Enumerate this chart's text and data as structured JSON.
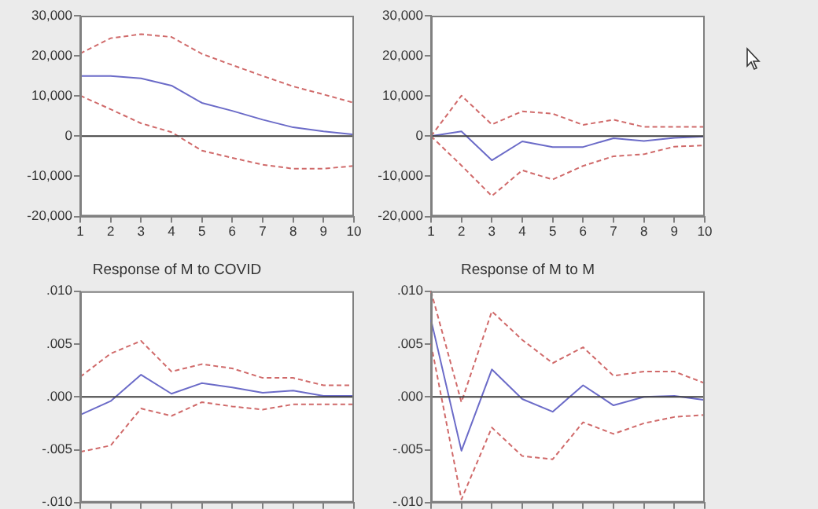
{
  "chart_data": [
    {
      "type": "line",
      "categories": [
        "1",
        "2",
        "3",
        "4",
        "5",
        "6",
        "7",
        "8",
        "9",
        "10"
      ],
      "ylim": [
        -20000,
        30000
      ],
      "yticks": [
        {
          "value": -20000,
          "label": "-20,000"
        },
        {
          "value": -10000,
          "label": "-10,000"
        },
        0,
        {
          "value": 10000,
          "label": "10,000"
        },
        {
          "value": 20000,
          "label": "20,000"
        },
        {
          "value": 30000,
          "label": "30,000"
        }
      ],
      "grid": false,
      "legend": false,
      "marker": "none",
      "ref_lines": [
        {
          "axis": "y",
          "value": 0,
          "color": "#404040"
        }
      ],
      "series": [
        {
          "color": "#d06a6a",
          "line_style": "dashed",
          "values": [
            20600,
            24400,
            25400,
            24700,
            20500,
            17700,
            15000,
            12400,
            10400,
            8300
          ]
        },
        {
          "color": "#6b6bc8",
          "line_style": "solid",
          "values": [
            15000,
            15000,
            14400,
            12600,
            8300,
            6300,
            4100,
            2200,
            1200,
            400
          ]
        },
        {
          "color": "#d06a6a",
          "line_style": "dashed",
          "values": [
            10100,
            6700,
            3200,
            1000,
            -3600,
            -5400,
            -7100,
            -8100,
            -8100,
            -7400
          ]
        }
      ]
    },
    {
      "type": "line",
      "categories": [
        "1",
        "2",
        "3",
        "4",
        "5",
        "6",
        "7",
        "8",
        "9",
        "10"
      ],
      "ylim": [
        -20000,
        30000
      ],
      "yticks": [
        {
          "value": -20000,
          "label": "-20,000"
        },
        {
          "value": -10000,
          "label": "-10,000"
        },
        0,
        {
          "value": 10000,
          "label": "10,000"
        },
        {
          "value": 20000,
          "label": "20,000"
        },
        {
          "value": 30000,
          "label": "30,000"
        }
      ],
      "grid": false,
      "legend": false,
      "marker": "none",
      "ref_lines": [
        {
          "axis": "y",
          "value": 0,
          "color": "#404040"
        }
      ],
      "series": [
        {
          "color": "#d06a6a",
          "line_style": "dashed",
          "values": [
            0,
            10100,
            2900,
            6200,
            5600,
            2800,
            4100,
            2300,
            2300,
            2300
          ]
        },
        {
          "color": "#6b6bc8",
          "line_style": "solid",
          "values": [
            0,
            1200,
            -6000,
            -1300,
            -2700,
            -2700,
            -500,
            -1200,
            -400,
            -100
          ]
        },
        {
          "color": "#d06a6a",
          "line_style": "dashed",
          "values": [
            0,
            -7300,
            -14900,
            -8500,
            -10800,
            -7400,
            -5000,
            -4500,
            -2600,
            -2300
          ]
        }
      ]
    },
    {
      "type": "line",
      "title": "Response of M to COVID",
      "categories": [
        null,
        null,
        null,
        null,
        null,
        null,
        null,
        null,
        null,
        null
      ],
      "tick_labels": "y",
      "ylim": [
        -0.01,
        0.01
      ],
      "yticks": [
        {
          "value": -0.01,
          "label": "-.010"
        },
        {
          "value": -0.005,
          "label": "-.005"
        },
        {
          "value": 0,
          "label": ".000"
        },
        {
          "value": 0.005,
          "label": ".005"
        },
        {
          "value": 0.01,
          "label": ".010"
        }
      ],
      "grid": false,
      "legend": false,
      "marker": "none",
      "ref_lines": [
        {
          "axis": "y",
          "value": 0,
          "color": "#404040"
        }
      ],
      "series": [
        {
          "color": "#d06a6a",
          "line_style": "dashed",
          "values": [
            0.0019,
            0.0041,
            0.0053,
            0.0024,
            0.0031,
            0.0027,
            0.0018,
            0.0018,
            0.0011,
            0.0011
          ]
        },
        {
          "color": "#6b6bc8",
          "line_style": "solid",
          "values": [
            -0.0017,
            -0.0004,
            0.0021,
            0.0003,
            0.0013,
            0.0009,
            0.0004,
            0.0006,
            0.0001,
            0.0001
          ]
        },
        {
          "color": "#d06a6a",
          "line_style": "dashed",
          "values": [
            -0.0052,
            -0.0046,
            -0.0011,
            -0.0018,
            -0.0005,
            -0.0009,
            -0.0012,
            -0.0007,
            -0.0007,
            -0.0007
          ]
        }
      ]
    },
    {
      "type": "line",
      "title": "Response of M to M",
      "categories": [
        null,
        null,
        null,
        null,
        null,
        null,
        null,
        null,
        null,
        null
      ],
      "tick_labels": "y",
      "ylim": [
        -0.01,
        0.01
      ],
      "yticks": [
        {
          "value": -0.01,
          "label": "-.010"
        },
        {
          "value": -0.005,
          "label": "-.005"
        },
        {
          "value": 0,
          "label": ".000"
        },
        {
          "value": 0.005,
          "label": ".005"
        },
        {
          "value": 0.01,
          "label": ".010"
        }
      ],
      "grid": false,
      "legend": false,
      "marker": "none",
      "ref_lines": [
        {
          "axis": "y",
          "value": 0,
          "color": "#404040"
        }
      ],
      "series": [
        {
          "color": "#d06a6a",
          "line_style": "dashed",
          "values": [
            0.01,
            -0.0005,
            0.0081,
            0.0054,
            0.0032,
            0.0047,
            0.002,
            0.0024,
            0.0024,
            0.0013
          ]
        },
        {
          "color": "#6b6bc8",
          "line_style": "solid",
          "values": [
            0.0073,
            -0.0051,
            0.0026,
            -0.0002,
            -0.0014,
            0.0011,
            -0.0008,
            0,
            0.0001,
            -0.0003
          ]
        },
        {
          "color": "#d06a6a",
          "line_style": "dashed",
          "values": [
            0.005,
            -0.0097,
            -0.0029,
            -0.0056,
            -0.0059,
            -0.0024,
            -0.0035,
            -0.0025,
            -0.0019,
            -0.0017
          ]
        }
      ]
    }
  ]
}
